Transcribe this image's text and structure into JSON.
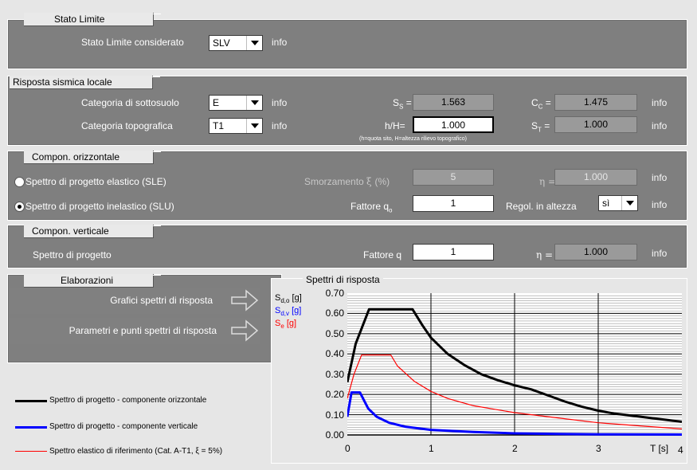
{
  "stato_limite": {
    "tab": "Stato Limite",
    "label": "Stato Limite considerato",
    "value": "SLV",
    "info": "info"
  },
  "risposta": {
    "tab": "Risposta sismica locale",
    "cat_sottosuolo_label": "Categoria di sottosuolo",
    "cat_sottosuolo_value": "E",
    "cat_topo_label": "Categoria topografica",
    "cat_topo_value": "T1",
    "info": "info",
    "ss_label": "S",
    "ss_sub": "S",
    "ss_eq": " =",
    "ss_value": "1.563",
    "cc_label": "C",
    "cc_sub": "C",
    "cc_eq": " =",
    "cc_value": "1.475",
    "hH_label": "h/H=",
    "hH_value": "1.000",
    "hH_note": "(h=quota sito, H=altezza rilievo topografico)",
    "st_label": "S",
    "st_sub": "T",
    "st_eq": " =",
    "st_value": "1.000"
  },
  "orizzontale": {
    "tab": "Compon. orizzontale",
    "sle_label": "Spettro di progetto elastico (SLE)",
    "slu_label": "Spettro di progetto inelastico (SLU)",
    "smorz_label": "Smorzamento",
    "smorz_unit": "(%)",
    "smorz_value": "5",
    "eta_label": "η =",
    "eta_value": "1.000",
    "fattore_label": "Fattore q",
    "fattore_sub": "o",
    "fattore_value": "1",
    "regol_label": "Regol. in altezza",
    "regol_value": "sì",
    "info": "info"
  },
  "verticale": {
    "tab": "Compon. verticale",
    "label": "Spettro di progetto",
    "fattore_label": "Fattore q",
    "fattore_value": "1",
    "eta_label": "η =",
    "eta_value": "1.000",
    "info": "info"
  },
  "elaborazioni": {
    "tab": "Elaborazioni",
    "btn1": "Grafici spettri di risposta",
    "btn2": "Parametri e punti spettri di risposta"
  },
  "legend": {
    "oriz": "Spettro di progetto - componente orizzontale",
    "vert": "Spettro di progetto - componente verticale",
    "elas": "Spettro elastico di riferimento (Cat. A-T1, ξ = 5%)"
  },
  "colors": {
    "oriz": "#000000",
    "vert": "#0000ff",
    "elas": "#ff0000"
  },
  "chart_data": {
    "type": "line",
    "title": "Spettri di risposta",
    "ylabels": [
      {
        "text": "S",
        "sub": "d,o",
        "unit": " [g]",
        "color": "#000000"
      },
      {
        "text": "S",
        "sub": "d,v",
        "unit": " [g]",
        "color": "#0000ff"
      },
      {
        "text": "S",
        "sub": "e",
        "unit": " [g]",
        "color": "#ff0000"
      }
    ],
    "xlabel": "T [s]",
    "xlim": [
      0,
      4
    ],
    "ylim": [
      0,
      0.7
    ],
    "xticks": [
      "0",
      "1",
      "2",
      "3",
      "4"
    ],
    "yticks": [
      "0.00",
      "0.10",
      "0.20",
      "0.30",
      "0.40",
      "0.50",
      "0.60",
      "0.70"
    ],
    "series": [
      {
        "name": "Spettro di progetto - componente orizzontale",
        "color": "#000000",
        "x": [
          0,
          0.1,
          0.26,
          0.5,
          0.78,
          0.9,
          1.0,
          1.2,
          1.4,
          1.6,
          1.8,
          2.0,
          2.2,
          2.4,
          2.6,
          2.8,
          3.0,
          3.2,
          3.4,
          3.6,
          3.8,
          4.0
        ],
        "y": [
          0.26,
          0.45,
          0.62,
          0.62,
          0.62,
          0.54,
          0.48,
          0.4,
          0.345,
          0.3,
          0.27,
          0.245,
          0.225,
          0.195,
          0.165,
          0.14,
          0.12,
          0.105,
          0.095,
          0.085,
          0.075,
          0.065
        ]
      },
      {
        "name": "Spettro di progetto - componente verticale",
        "color": "#0000ff",
        "x": [
          0,
          0.05,
          0.15,
          0.25,
          0.35,
          0.5,
          0.7,
          1.0,
          1.5,
          2.0,
          2.5,
          3.0,
          4.0
        ],
        "y": [
          0.09,
          0.21,
          0.21,
          0.13,
          0.09,
          0.06,
          0.04,
          0.025,
          0.015,
          0.008,
          0.005,
          0.003,
          0.002
        ]
      },
      {
        "name": "Spettro elastico di riferimento (Cat. A-T1, ξ = 5%)",
        "color": "#ff0000",
        "x": [
          0,
          0.08,
          0.17,
          0.52,
          0.6,
          0.8,
          1.0,
          1.2,
          1.5,
          2.0,
          2.5,
          3.0,
          3.5,
          4.0
        ],
        "y": [
          0.18,
          0.3,
          0.395,
          0.395,
          0.34,
          0.265,
          0.215,
          0.18,
          0.145,
          0.11,
          0.085,
          0.06,
          0.045,
          0.03
        ]
      }
    ]
  }
}
